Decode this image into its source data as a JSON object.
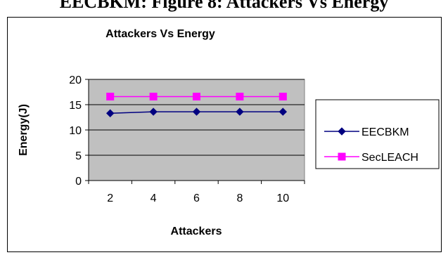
{
  "page": {
    "title": "EECBKM: Figure 8: Attackers Vs Energy"
  },
  "chart_data": {
    "type": "line",
    "title": "Attackers Vs Energy",
    "xlabel": "Attackers",
    "ylabel": "Energy(J)",
    "categories": [
      "2",
      "4",
      "6",
      "8",
      "10"
    ],
    "ylim": [
      0,
      20
    ],
    "yticks": [
      0,
      5,
      10,
      15,
      20
    ],
    "grid": true,
    "legend_position": "right",
    "plot_background": "#c0c0c0",
    "series": [
      {
        "name": "EECBKM",
        "values": [
          13.3,
          13.6,
          13.6,
          13.6,
          13.6
        ],
        "color": "#000080",
        "marker": "diamond"
      },
      {
        "name": "SecLEACH",
        "values": [
          16.6,
          16.6,
          16.6,
          16.6,
          16.6
        ],
        "color": "#ff00ff",
        "marker": "square"
      }
    ]
  }
}
